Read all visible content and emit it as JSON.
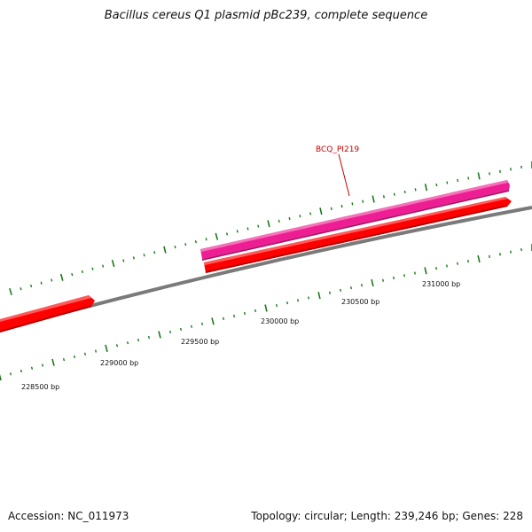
{
  "title": "Bacillus cereus Q1 plasmid pBc239, complete sequence",
  "footer": {
    "accession": "Accession: NC_011973",
    "summary": "Topology: circular; Length: 239,246 bp; Genes: 228"
  },
  "colors": {
    "backbone": "#7a7a7a",
    "forward_gene": "#ee1d93",
    "reverse_gene": "#ff0000",
    "tick": "#1a7a1a",
    "gene_label": "#cc0000"
  },
  "scale_labels": [
    "228500 bp",
    "229000 bp",
    "229500 bp",
    "230000 bp",
    "230500 bp",
    "231000 bp"
  ],
  "genes": [
    {
      "label": "BCQ_PI219",
      "strand": "forward",
      "color": "magenta"
    },
    {
      "label": "",
      "strand": "reverse",
      "color": "red"
    },
    {
      "label": "",
      "strand": "reverse",
      "color": "red"
    }
  ]
}
